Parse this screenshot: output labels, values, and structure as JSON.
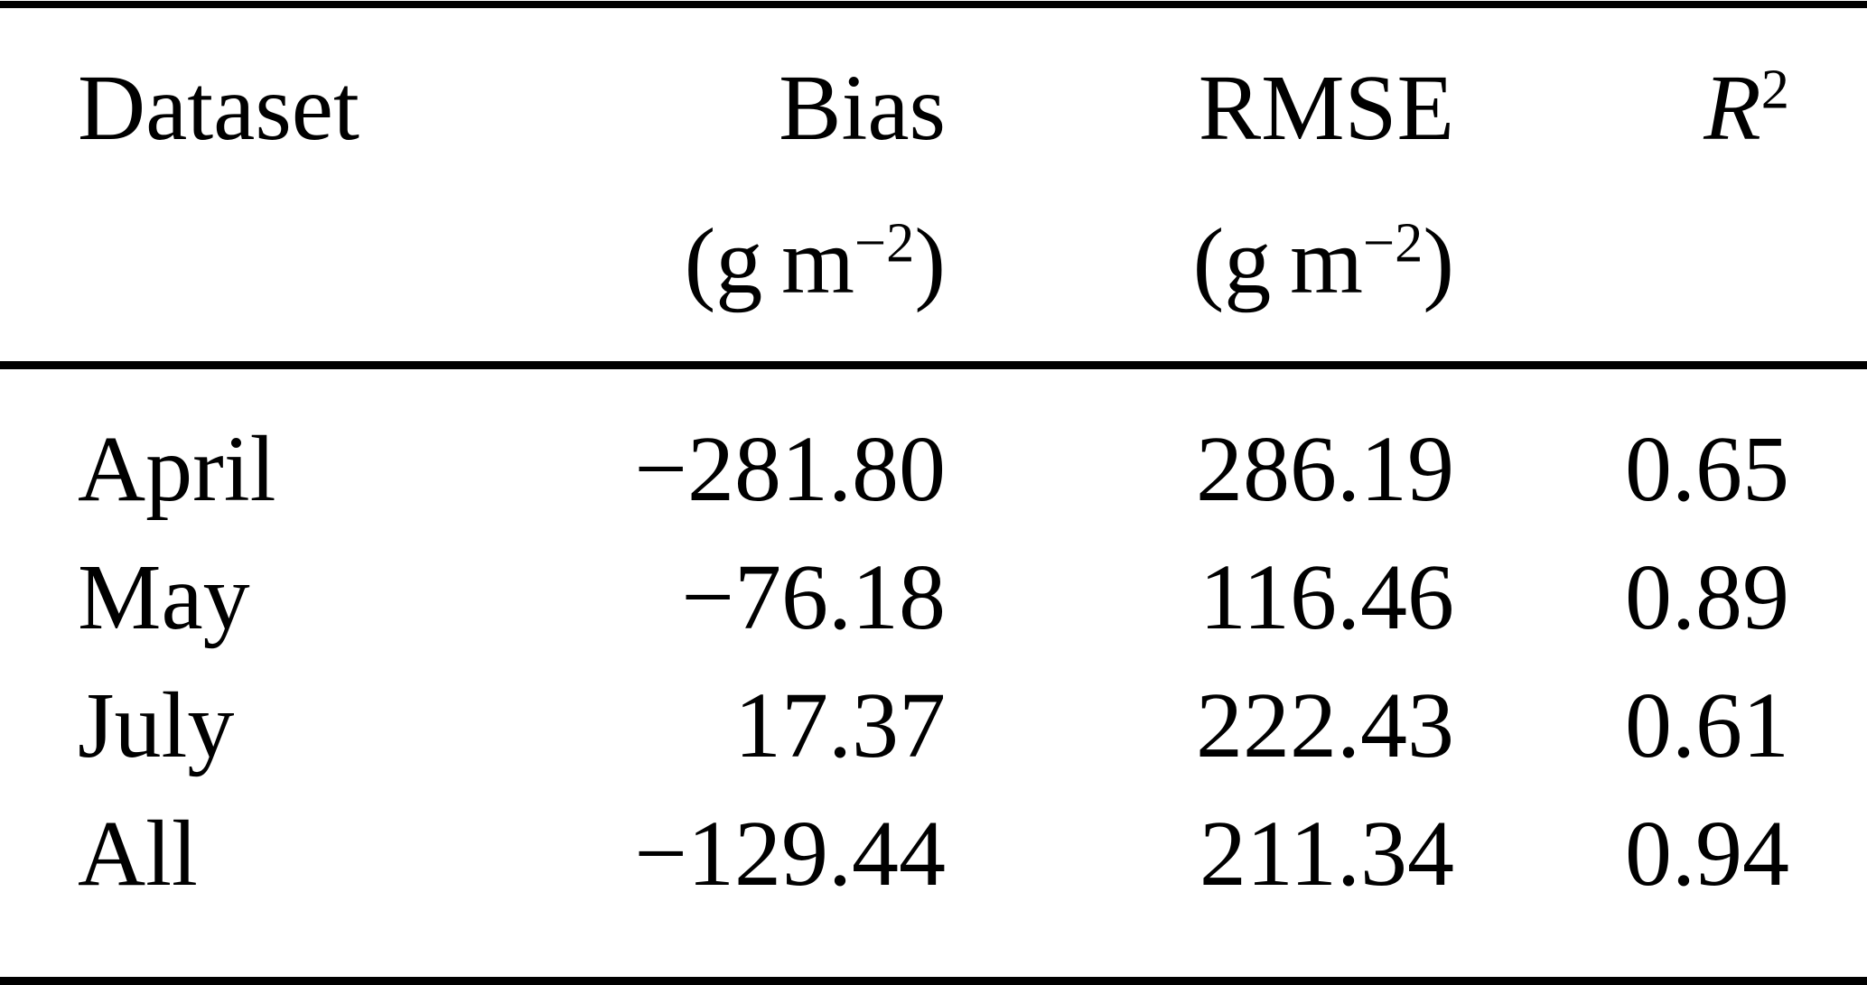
{
  "table": {
    "header": {
      "col1": "Dataset",
      "col2": {
        "label": "Bias",
        "unit_prefix": "(g m",
        "unit_sup": "−2",
        "unit_suffix": ")"
      },
      "col3": {
        "label": "RMSE",
        "unit_prefix": "(g m",
        "unit_sup": "−2",
        "unit_suffix": ")"
      },
      "col4": {
        "base": "R",
        "sup": "2"
      }
    },
    "rows": [
      {
        "dataset": "April",
        "bias": "−281.80",
        "rmse": "286.19",
        "r2": "0.65"
      },
      {
        "dataset": "May",
        "bias": "−76.18",
        "rmse": "116.46",
        "r2": "0.89"
      },
      {
        "dataset": "July",
        "bias": "17.37",
        "rmse": "222.43",
        "r2": "0.61"
      },
      {
        "dataset": "All",
        "bias": "−129.44",
        "rmse": "211.34",
        "r2": "0.94"
      }
    ]
  },
  "colors": {
    "text": "#000000",
    "background": "#ffffff",
    "rule": "#000000"
  }
}
